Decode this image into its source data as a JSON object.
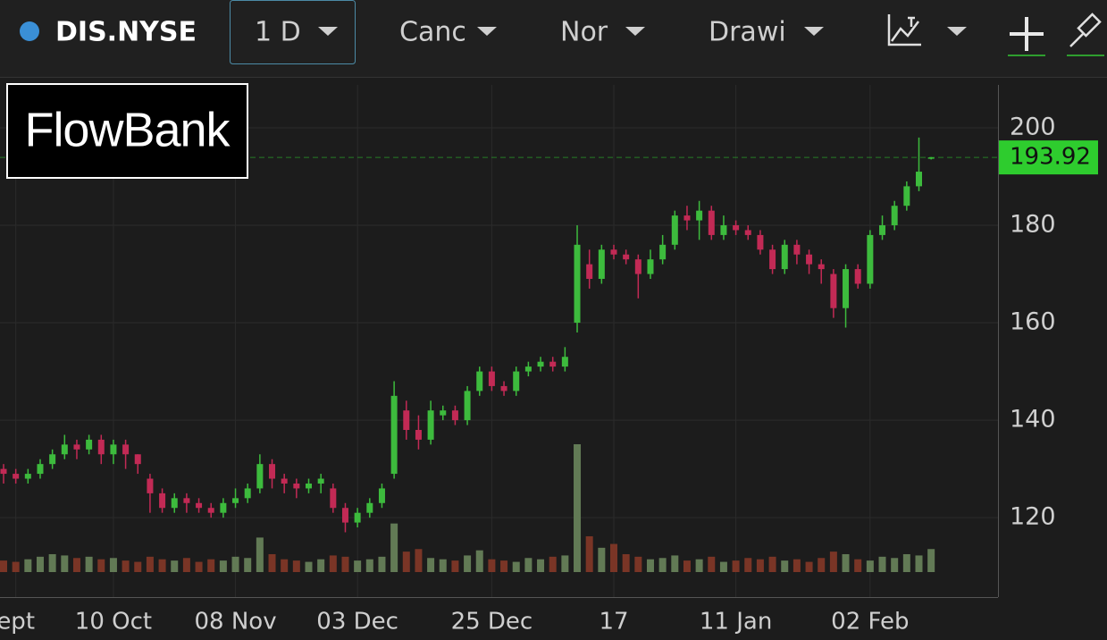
{
  "toolbar": {
    "symbol": "DIS.NYSE",
    "interval": "1 D",
    "chart_style": "Canc",
    "scale_mode": "Nor",
    "drawing": "Drawi"
  },
  "logo": "FlowBank",
  "chart_data": {
    "type": "candlestick",
    "categories": [
      null,
      "ept",
      null,
      null,
      null,
      null,
      null,
      null,
      null,
      "10 Oct",
      null,
      null,
      null,
      null,
      null,
      null,
      null,
      null,
      null,
      "08 Nov",
      null,
      null,
      null,
      null,
      null,
      null,
      null,
      null,
      null,
      "03 Dec",
      null,
      null,
      null,
      null,
      null,
      null,
      null,
      null,
      null,
      null,
      "25 Dec",
      null,
      null,
      null,
      null,
      null,
      null,
      null,
      null,
      null,
      "17",
      null,
      null,
      null,
      null,
      null,
      null,
      null,
      null,
      null,
      "11 Jan",
      null,
      null,
      null,
      null,
      null,
      null,
      null,
      null,
      null,
      null,
      "02 Feb",
      null,
      null,
      null,
      null,
      null
    ],
    "open": [
      130,
      129,
      128,
      129,
      131,
      133,
      135,
      134,
      136,
      133,
      135,
      133,
      128,
      125,
      122,
      124,
      123,
      122,
      121,
      123,
      124,
      126,
      131,
      128,
      127,
      126,
      127,
      126,
      122,
      119,
      121,
      123,
      129,
      142,
      138,
      136,
      141,
      142,
      140,
      146,
      150,
      147,
      146,
      150,
      151,
      152,
      151,
      160,
      172,
      169,
      175,
      174,
      173,
      170,
      173,
      176,
      182,
      181,
      183,
      178,
      180,
      179,
      178,
      175,
      171,
      176,
      174,
      172,
      170,
      163,
      171,
      168,
      178,
      180,
      184,
      188,
      193.9
    ],
    "high": [
      131,
      130,
      130,
      132,
      134,
      137,
      136,
      137,
      137,
      136,
      136,
      133,
      129,
      126,
      125,
      125,
      124,
      123,
      124,
      126,
      127,
      133,
      132,
      129,
      128,
      128,
      129,
      127,
      123,
      122,
      124,
      127,
      148,
      144,
      141,
      144,
      143,
      143,
      147,
      151,
      151,
      148,
      151,
      152,
      153,
      153,
      155,
      180,
      175,
      176,
      176,
      175,
      174,
      175,
      178,
      183,
      184,
      185,
      184,
      182,
      181,
      180,
      179,
      176,
      177,
      177,
      175,
      173,
      171,
      172,
      172,
      179,
      182,
      185,
      189,
      198,
      194
    ],
    "low": [
      127,
      127,
      127,
      128,
      130,
      132,
      132,
      133,
      131,
      131,
      130,
      129,
      121,
      121,
      121,
      121,
      121,
      120,
      120,
      122,
      123,
      125,
      126,
      125,
      124,
      125,
      125,
      121,
      117,
      118,
      120,
      122,
      128,
      136,
      134,
      135,
      140,
      139,
      139,
      145,
      146,
      145,
      145,
      149,
      150,
      150,
      150,
      158,
      167,
      168,
      173,
      172,
      165,
      169,
      172,
      175,
      179,
      177,
      177,
      177,
      178,
      177,
      174,
      170,
      170,
      172,
      170,
      168,
      161,
      159,
      167,
      167,
      177,
      179,
      183,
      187,
      193.5
    ],
    "close": [
      129,
      128,
      129,
      131,
      133,
      135,
      134,
      136,
      133,
      135,
      133,
      131,
      125,
      122,
      124,
      123,
      122,
      121,
      123,
      124,
      126,
      131,
      128,
      127,
      126,
      127,
      128,
      122,
      119,
      121,
      123,
      126,
      145,
      138,
      136,
      142,
      142,
      140,
      146,
      150,
      147,
      146,
      150,
      151,
      152,
      151,
      153,
      176,
      169,
      175,
      174,
      173,
      170,
      173,
      176,
      182,
      181,
      183,
      178,
      180,
      179,
      178,
      175,
      171,
      176,
      174,
      172,
      171,
      163,
      171,
      168,
      178,
      180,
      184,
      188,
      191,
      193.92
    ],
    "volume": [
      9,
      8,
      10,
      12,
      14,
      13,
      11,
      12,
      10,
      11,
      9,
      8,
      12,
      10,
      9,
      11,
      8,
      10,
      9,
      12,
      11,
      27,
      14,
      10,
      9,
      8,
      10,
      13,
      12,
      9,
      10,
      12,
      38,
      16,
      18,
      11,
      10,
      9,
      13,
      17,
      10,
      9,
      8,
      11,
      10,
      12,
      13,
      100,
      28,
      19,
      22,
      14,
      12,
      10,
      11,
      13,
      9,
      10,
      12,
      8,
      9,
      11,
      10,
      12,
      9,
      10,
      8,
      11,
      16,
      14,
      10,
      9,
      12,
      11,
      14,
      13,
      18
    ],
    "ylim": [
      103.7,
      208.8
    ],
    "yticks": [
      120,
      140,
      160,
      180,
      200
    ],
    "volume_ylim": [
      0,
      100
    ],
    "up_color": "#3dbb3d",
    "down_color": "#c22a55",
    "volume_up_color": "#627a55",
    "volume_down_color": "#7a3526",
    "last_price_color": "#2ecc2e",
    "grid": true
  }
}
